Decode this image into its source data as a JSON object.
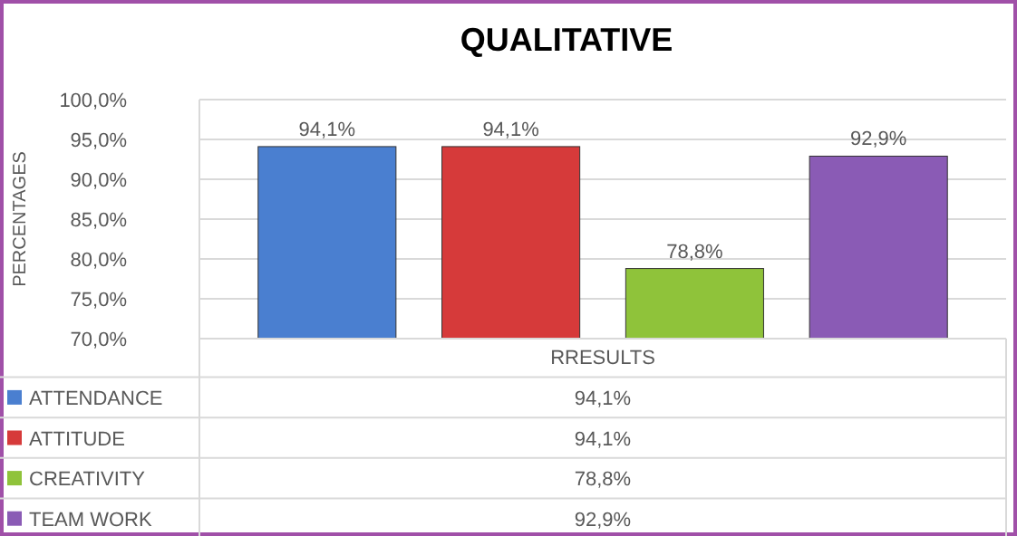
{
  "chart_data": {
    "type": "bar",
    "title": "QUALITATIVE",
    "ylabel": "PERCENTAGES",
    "categories": [
      "RRESULTS"
    ],
    "series": [
      {
        "name": "ATTENDANCE",
        "color": "#4a7fd0",
        "values": [
          94.1
        ],
        "value_labels": [
          "94,1%"
        ]
      },
      {
        "name": "ATTITUDE",
        "color": "#d63a3a",
        "values": [
          94.1
        ],
        "value_labels": [
          "94,1%"
        ]
      },
      {
        "name": "CREATIVITY",
        "color": "#8fc33a",
        "values": [
          78.8
        ],
        "value_labels": [
          "78,8%"
        ]
      },
      {
        "name": "TEAM WORK",
        "color": "#8a5bb5",
        "values": [
          92.9
        ],
        "value_labels": [
          "92,9%"
        ]
      }
    ],
    "ylim": [
      70,
      100
    ],
    "yticks": [
      {
        "value": 70,
        "label": "70,0%"
      },
      {
        "value": 75,
        "label": "75,0%"
      },
      {
        "value": 80,
        "label": "80,0%"
      },
      {
        "value": 85,
        "label": "85,0%"
      },
      {
        "value": 90,
        "label": "90,0%"
      },
      {
        "value": 95,
        "label": "95,0%"
      },
      {
        "value": 100,
        "label": "100,0%"
      }
    ],
    "grid": "y",
    "legend": "bottom"
  }
}
